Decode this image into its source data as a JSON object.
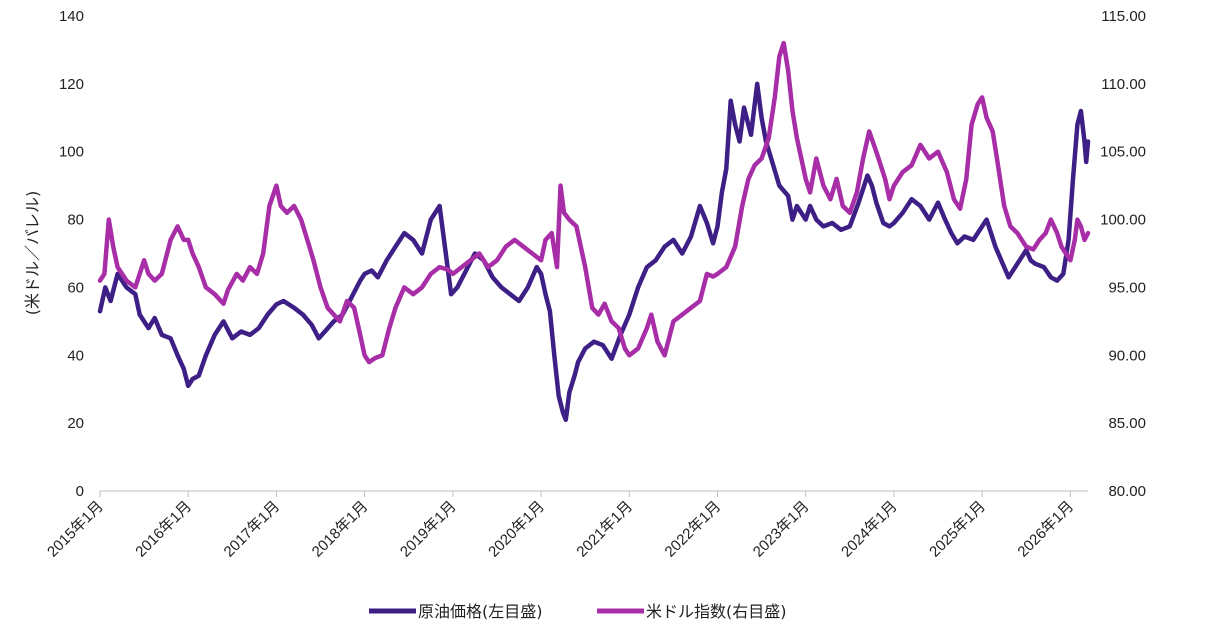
{
  "chart_data": {
    "type": "line",
    "title": "",
    "ylabel_left": "(米ドル／バレル)",
    "ylabel_right": "",
    "x_tick_labels": [
      "2015年1月",
      "2016年1月",
      "2017年1月",
      "2018年1月",
      "2019年1月",
      "2020年1月",
      "2021年1月",
      "2022年1月",
      "2023年1月",
      "2024年1月",
      "2025年1月",
      "2026年1月"
    ],
    "x_range": [
      2015.0,
      2026.2
    ],
    "ylim_left": [
      0,
      140
    ],
    "yticks_left": [
      "0",
      "20",
      "40",
      "60",
      "80",
      "100",
      "120",
      "140"
    ],
    "ylim_right": [
      80,
      115
    ],
    "yticks_right": [
      "80.00",
      "85.00",
      "90.00",
      "95.00",
      "100.00",
      "105.00",
      "110.00",
      "115.00"
    ],
    "legend_position": "bottom-center",
    "series": [
      {
        "name": "原油価格(左目盛)",
        "axis": "left",
        "color": "#3d1f86",
        "points": [
          [
            2015.0,
            53
          ],
          [
            2015.06,
            60
          ],
          [
            2015.12,
            56
          ],
          [
            2015.2,
            64
          ],
          [
            2015.3,
            60
          ],
          [
            2015.4,
            58
          ],
          [
            2015.45,
            52
          ],
          [
            2015.55,
            48
          ],
          [
            2015.62,
            51
          ],
          [
            2015.7,
            46
          ],
          [
            2015.8,
            45
          ],
          [
            2015.88,
            40
          ],
          [
            2015.95,
            36
          ],
          [
            2016.0,
            31
          ],
          [
            2016.05,
            33
          ],
          [
            2016.12,
            34
          ],
          [
            2016.2,
            40
          ],
          [
            2016.3,
            46
          ],
          [
            2016.4,
            50
          ],
          [
            2016.5,
            45
          ],
          [
            2016.6,
            47
          ],
          [
            2016.7,
            46
          ],
          [
            2016.8,
            48
          ],
          [
            2016.9,
            52
          ],
          [
            2017.0,
            55
          ],
          [
            2017.08,
            56
          ],
          [
            2017.2,
            54
          ],
          [
            2017.3,
            52
          ],
          [
            2017.4,
            49
          ],
          [
            2017.48,
            45
          ],
          [
            2017.55,
            47
          ],
          [
            2017.65,
            50
          ],
          [
            2017.75,
            52
          ],
          [
            2017.85,
            57
          ],
          [
            2017.95,
            62
          ],
          [
            2018.0,
            64
          ],
          [
            2018.08,
            65
          ],
          [
            2018.15,
            63
          ],
          [
            2018.25,
            68
          ],
          [
            2018.35,
            72
          ],
          [
            2018.45,
            76
          ],
          [
            2018.55,
            74
          ],
          [
            2018.65,
            70
          ],
          [
            2018.75,
            80
          ],
          [
            2018.85,
            84
          ],
          [
            2018.92,
            70
          ],
          [
            2018.98,
            58
          ],
          [
            2019.05,
            60
          ],
          [
            2019.15,
            65
          ],
          [
            2019.25,
            70
          ],
          [
            2019.35,
            68
          ],
          [
            2019.45,
            63
          ],
          [
            2019.55,
            60
          ],
          [
            2019.65,
            58
          ],
          [
            2019.75,
            56
          ],
          [
            2019.85,
            60
          ],
          [
            2019.95,
            66
          ],
          [
            2020.0,
            64
          ],
          [
            2020.05,
            58
          ],
          [
            2020.1,
            53
          ],
          [
            2020.15,
            40
          ],
          [
            2020.2,
            28
          ],
          [
            2020.25,
            23
          ],
          [
            2020.28,
            21
          ],
          [
            2020.32,
            29
          ],
          [
            2020.38,
            34
          ],
          [
            2020.42,
            38
          ],
          [
            2020.5,
            42
          ],
          [
            2020.6,
            44
          ],
          [
            2020.7,
            43
          ],
          [
            2020.8,
            39
          ],
          [
            2020.9,
            46
          ],
          [
            2021.0,
            52
          ],
          [
            2021.1,
            60
          ],
          [
            2021.2,
            66
          ],
          [
            2021.3,
            68
          ],
          [
            2021.4,
            72
          ],
          [
            2021.5,
            74
          ],
          [
            2021.6,
            70
          ],
          [
            2021.7,
            75
          ],
          [
            2021.8,
            84
          ],
          [
            2021.88,
            79
          ],
          [
            2021.95,
            73
          ],
          [
            2022.0,
            78
          ],
          [
            2022.05,
            88
          ],
          [
            2022.1,
            95
          ],
          [
            2022.15,
            115
          ],
          [
            2022.2,
            108
          ],
          [
            2022.25,
            103
          ],
          [
            2022.3,
            113
          ],
          [
            2022.38,
            105
          ],
          [
            2022.45,
            120
          ],
          [
            2022.5,
            110
          ],
          [
            2022.55,
            103
          ],
          [
            2022.62,
            97
          ],
          [
            2022.7,
            90
          ],
          [
            2022.8,
            87
          ],
          [
            2022.85,
            80
          ],
          [
            2022.9,
            84
          ],
          [
            2022.95,
            82
          ],
          [
            2023.0,
            80
          ],
          [
            2023.05,
            84
          ],
          [
            2023.12,
            80
          ],
          [
            2023.2,
            78
          ],
          [
            2023.3,
            79
          ],
          [
            2023.4,
            77
          ],
          [
            2023.5,
            78
          ],
          [
            2023.6,
            85
          ],
          [
            2023.7,
            93
          ],
          [
            2023.75,
            90
          ],
          [
            2023.8,
            85
          ],
          [
            2023.88,
            79
          ],
          [
            2023.95,
            78
          ],
          [
            2024.0,
            79
          ],
          [
            2024.1,
            82
          ],
          [
            2024.2,
            86
          ],
          [
            2024.3,
            84
          ],
          [
            2024.4,
            80
          ],
          [
            2024.5,
            85
          ],
          [
            2024.58,
            80
          ],
          [
            2024.65,
            76
          ],
          [
            2024.72,
            73
          ],
          [
            2024.8,
            75
          ],
          [
            2024.9,
            74
          ],
          [
            2025.0,
            78
          ],
          [
            2025.05,
            80
          ],
          [
            2025.1,
            76
          ],
          [
            2025.15,
            72
          ],
          [
            2025.25,
            66
          ],
          [
            2025.3,
            63
          ],
          [
            2025.4,
            67
          ],
          [
            2025.5,
            71
          ],
          [
            2025.55,
            68
          ],
          [
            2025.6,
            67
          ],
          [
            2025.7,
            66
          ],
          [
            2025.78,
            63
          ],
          [
            2025.85,
            62
          ],
          [
            2025.92,
            64
          ],
          [
            2025.98,
            74
          ],
          [
            2026.03,
            92
          ],
          [
            2026.08,
            108
          ],
          [
            2026.12,
            112
          ],
          [
            2026.16,
            103
          ],
          [
            2026.18,
            97
          ],
          [
            2026.2,
            103
          ]
        ]
      },
      {
        "name": "米ドル指数(右目盛)",
        "axis": "right",
        "color": "#a82ea8",
        "points": [
          [
            2015.0,
            95.5
          ],
          [
            2015.05,
            96.0
          ],
          [
            2015.1,
            100.0
          ],
          [
            2015.15,
            98.0
          ],
          [
            2015.2,
            96.5
          ],
          [
            2015.3,
            95.5
          ],
          [
            2015.4,
            95.0
          ],
          [
            2015.5,
            97.0
          ],
          [
            2015.55,
            96.0
          ],
          [
            2015.62,
            95.5
          ],
          [
            2015.7,
            96.0
          ],
          [
            2015.8,
            98.5
          ],
          [
            2015.88,
            99.5
          ],
          [
            2015.95,
            98.5
          ],
          [
            2016.0,
            98.5
          ],
          [
            2016.05,
            97.5
          ],
          [
            2016.12,
            96.5
          ],
          [
            2016.2,
            95.0
          ],
          [
            2016.3,
            94.5
          ],
          [
            2016.4,
            93.8
          ],
          [
            2016.45,
            94.8
          ],
          [
            2016.55,
            96.0
          ],
          [
            2016.62,
            95.5
          ],
          [
            2016.7,
            96.5
          ],
          [
            2016.78,
            96.0
          ],
          [
            2016.85,
            97.5
          ],
          [
            2016.92,
            101.0
          ],
          [
            2017.0,
            102.5
          ],
          [
            2017.05,
            101.0
          ],
          [
            2017.12,
            100.5
          ],
          [
            2017.2,
            101.0
          ],
          [
            2017.28,
            100.0
          ],
          [
            2017.35,
            98.5
          ],
          [
            2017.42,
            97.0
          ],
          [
            2017.5,
            95.0
          ],
          [
            2017.58,
            93.5
          ],
          [
            2017.65,
            93.0
          ],
          [
            2017.72,
            92.5
          ],
          [
            2017.8,
            94.0
          ],
          [
            2017.88,
            93.5
          ],
          [
            2017.95,
            91.5
          ],
          [
            2018.0,
            90.0
          ],
          [
            2018.05,
            89.5
          ],
          [
            2018.12,
            89.8
          ],
          [
            2018.2,
            90.0
          ],
          [
            2018.28,
            92.0
          ],
          [
            2018.35,
            93.5
          ],
          [
            2018.45,
            95.0
          ],
          [
            2018.55,
            94.5
          ],
          [
            2018.65,
            95.0
          ],
          [
            2018.75,
            96.0
          ],
          [
            2018.85,
            96.5
          ],
          [
            2018.95,
            96.3
          ],
          [
            2019.0,
            96.0
          ],
          [
            2019.1,
            96.5
          ],
          [
            2019.2,
            97.0
          ],
          [
            2019.3,
            97.5
          ],
          [
            2019.4,
            96.5
          ],
          [
            2019.5,
            97.0
          ],
          [
            2019.6,
            98.0
          ],
          [
            2019.7,
            98.5
          ],
          [
            2019.8,
            98.0
          ],
          [
            2019.9,
            97.5
          ],
          [
            2020.0,
            97.0
          ],
          [
            2020.05,
            98.5
          ],
          [
            2020.12,
            99.0
          ],
          [
            2020.18,
            96.5
          ],
          [
            2020.22,
            102.5
          ],
          [
            2020.26,
            100.5
          ],
          [
            2020.32,
            100.0
          ],
          [
            2020.4,
            99.5
          ],
          [
            2020.45,
            98.0
          ],
          [
            2020.5,
            96.5
          ],
          [
            2020.58,
            93.5
          ],
          [
            2020.65,
            93.0
          ],
          [
            2020.72,
            93.8
          ],
          [
            2020.8,
            92.5
          ],
          [
            2020.88,
            92.0
          ],
          [
            2020.95,
            90.5
          ],
          [
            2021.0,
            90.0
          ],
          [
            2021.1,
            90.5
          ],
          [
            2021.2,
            92.0
          ],
          [
            2021.25,
            93.0
          ],
          [
            2021.32,
            91.0
          ],
          [
            2021.4,
            90.0
          ],
          [
            2021.5,
            92.5
          ],
          [
            2021.6,
            93.0
          ],
          [
            2021.7,
            93.5
          ],
          [
            2021.8,
            94.0
          ],
          [
            2021.88,
            96.0
          ],
          [
            2021.95,
            95.8
          ],
          [
            2022.0,
            96.0
          ],
          [
            2022.1,
            96.5
          ],
          [
            2022.2,
            98.0
          ],
          [
            2022.28,
            101.0
          ],
          [
            2022.35,
            103.0
          ],
          [
            2022.42,
            104.0
          ],
          [
            2022.5,
            104.5
          ],
          [
            2022.58,
            106.0
          ],
          [
            2022.65,
            109.0
          ],
          [
            2022.7,
            112.0
          ],
          [
            2022.75,
            113.0
          ],
          [
            2022.8,
            111.0
          ],
          [
            2022.85,
            108.0
          ],
          [
            2022.9,
            106.0
          ],
          [
            2022.95,
            104.5
          ],
          [
            2023.0,
            103.0
          ],
          [
            2023.05,
            102.0
          ],
          [
            2023.12,
            104.5
          ],
          [
            2023.2,
            102.5
          ],
          [
            2023.28,
            101.5
          ],
          [
            2023.35,
            103.0
          ],
          [
            2023.42,
            101.0
          ],
          [
            2023.5,
            100.5
          ],
          [
            2023.58,
            102.0
          ],
          [
            2023.65,
            104.5
          ],
          [
            2023.72,
            106.5
          ],
          [
            2023.8,
            105.0
          ],
          [
            2023.9,
            103.0
          ],
          [
            2023.95,
            101.5
          ],
          [
            2024.0,
            102.5
          ],
          [
            2024.1,
            103.5
          ],
          [
            2024.2,
            104.0
          ],
          [
            2024.3,
            105.5
          ],
          [
            2024.4,
            104.5
          ],
          [
            2024.5,
            105.0
          ],
          [
            2024.6,
            103.5
          ],
          [
            2024.68,
            101.5
          ],
          [
            2024.75,
            100.8
          ],
          [
            2024.82,
            103.0
          ],
          [
            2024.88,
            107.0
          ],
          [
            2024.95,
            108.5
          ],
          [
            2025.0,
            109.0
          ],
          [
            2025.05,
            107.5
          ],
          [
            2025.12,
            106.5
          ],
          [
            2025.18,
            104.0
          ],
          [
            2025.25,
            101.0
          ],
          [
            2025.32,
            99.5
          ],
          [
            2025.4,
            99.0
          ],
          [
            2025.5,
            98.0
          ],
          [
            2025.58,
            97.8
          ],
          [
            2025.65,
            98.5
          ],
          [
            2025.72,
            99.0
          ],
          [
            2025.78,
            100.0
          ],
          [
            2025.85,
            99.0
          ],
          [
            2025.9,
            98.0
          ],
          [
            2025.95,
            97.5
          ],
          [
            2026.0,
            97.0
          ],
          [
            2026.05,
            98.5
          ],
          [
            2026.08,
            100.0
          ],
          [
            2026.12,
            99.5
          ],
          [
            2026.16,
            98.5
          ],
          [
            2026.2,
            99.0
          ]
        ]
      }
    ]
  }
}
